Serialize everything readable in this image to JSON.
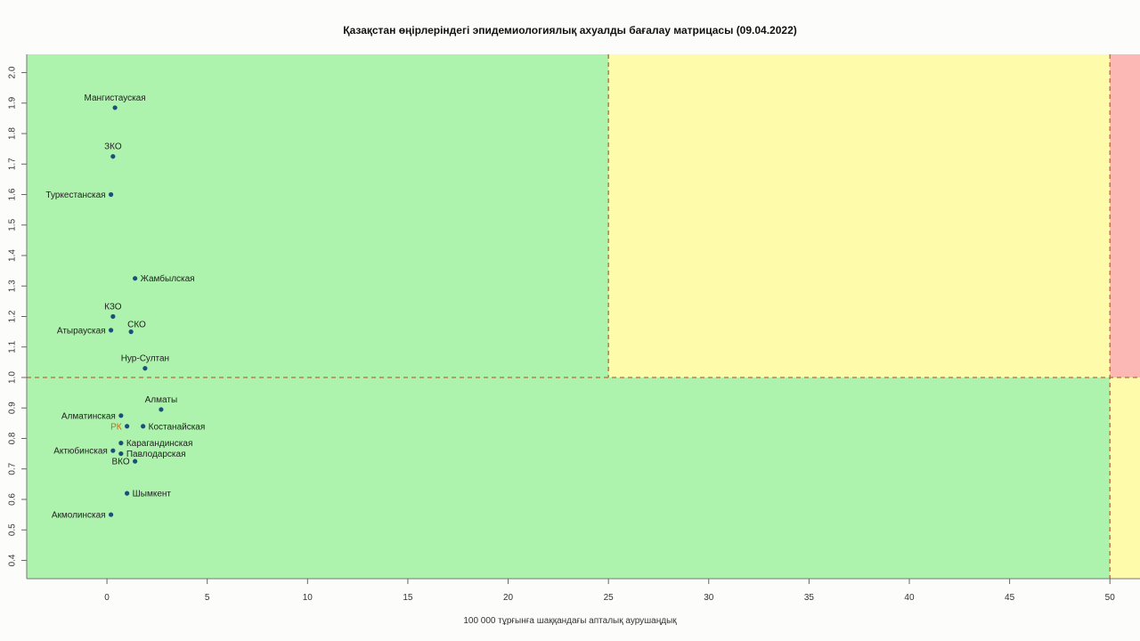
{
  "chart_data": {
    "type": "scatter",
    "title": "Қазақстан өңірлеріндегі эпидемиологиялық ахуалды бағалау матрицасы  (09.04.2022)",
    "xlabel": "100 000 тұрғынға шаққандағы апталық аурушаңдық",
    "ylabel": "",
    "xlim": [
      -4,
      51.5
    ],
    "ylim": [
      0.34,
      2.06
    ],
    "x_ticks": [
      0,
      5,
      10,
      15,
      20,
      25,
      30,
      35,
      40,
      45,
      50
    ],
    "y_ticks": [
      0.4,
      0.5,
      0.6,
      0.7,
      0.8,
      0.9,
      1.0,
      1.1,
      1.2,
      1.3,
      1.4,
      1.5,
      1.6,
      1.7,
      1.8,
      1.9,
      2.0
    ],
    "thresholds": {
      "x": [
        25,
        50
      ],
      "y": 1.0
    },
    "zones": [
      {
        "name": "green",
        "color": "#adf2ad"
      },
      {
        "name": "yellow",
        "color": "#fefcab"
      },
      {
        "name": "red",
        "color": "#fcb8b4"
      }
    ],
    "grid": false,
    "legend": "none",
    "point_color": "#1b4f7a",
    "label_color": "#222222",
    "highlight_color": "#d4660f",
    "points": [
      {
        "label": "Мангистауская",
        "x": 0.4,
        "y": 1.885,
        "label_pos": "top"
      },
      {
        "label": "ЗКО",
        "x": 0.3,
        "y": 1.725,
        "label_pos": "top"
      },
      {
        "label": "Туркестанская",
        "x": 0.2,
        "y": 1.6,
        "label_pos": "left"
      },
      {
        "label": "Жамбылская",
        "x": 1.4,
        "y": 1.325,
        "label_pos": "right"
      },
      {
        "label": "КЗО",
        "x": 0.3,
        "y": 1.2,
        "label_pos": "top"
      },
      {
        "label": "Атырауская",
        "x": 0.2,
        "y": 1.155,
        "label_pos": "left"
      },
      {
        "label": "СКО",
        "x": 1.2,
        "y": 1.15,
        "label_pos": "top-right"
      },
      {
        "label": "Нур-Султан",
        "x": 1.9,
        "y": 1.03,
        "label_pos": "top"
      },
      {
        "label": "Алматы",
        "x": 2.7,
        "y": 0.895,
        "label_pos": "top"
      },
      {
        "label": "Алматинская",
        "x": 0.7,
        "y": 0.875,
        "label_pos": "left"
      },
      {
        "label": "РК",
        "x": 1.0,
        "y": 0.84,
        "label_pos": "left",
        "highlight": true
      },
      {
        "label": "Костанайская",
        "x": 1.8,
        "y": 0.84,
        "label_pos": "right"
      },
      {
        "label": "Карагандинская",
        "x": 0.7,
        "y": 0.785,
        "label_pos": "right"
      },
      {
        "label": "Актюбинская",
        "x": 0.3,
        "y": 0.76,
        "label_pos": "left"
      },
      {
        "label": "Павлодарская",
        "x": 0.7,
        "y": 0.75,
        "label_pos": "right"
      },
      {
        "label": "ВКО",
        "x": 1.4,
        "y": 0.725,
        "label_pos": "left"
      },
      {
        "label": "Шымкент",
        "x": 1.0,
        "y": 0.62,
        "label_pos": "right"
      },
      {
        "label": "Акмолинская",
        "x": 0.2,
        "y": 0.55,
        "label_pos": "left"
      }
    ]
  }
}
